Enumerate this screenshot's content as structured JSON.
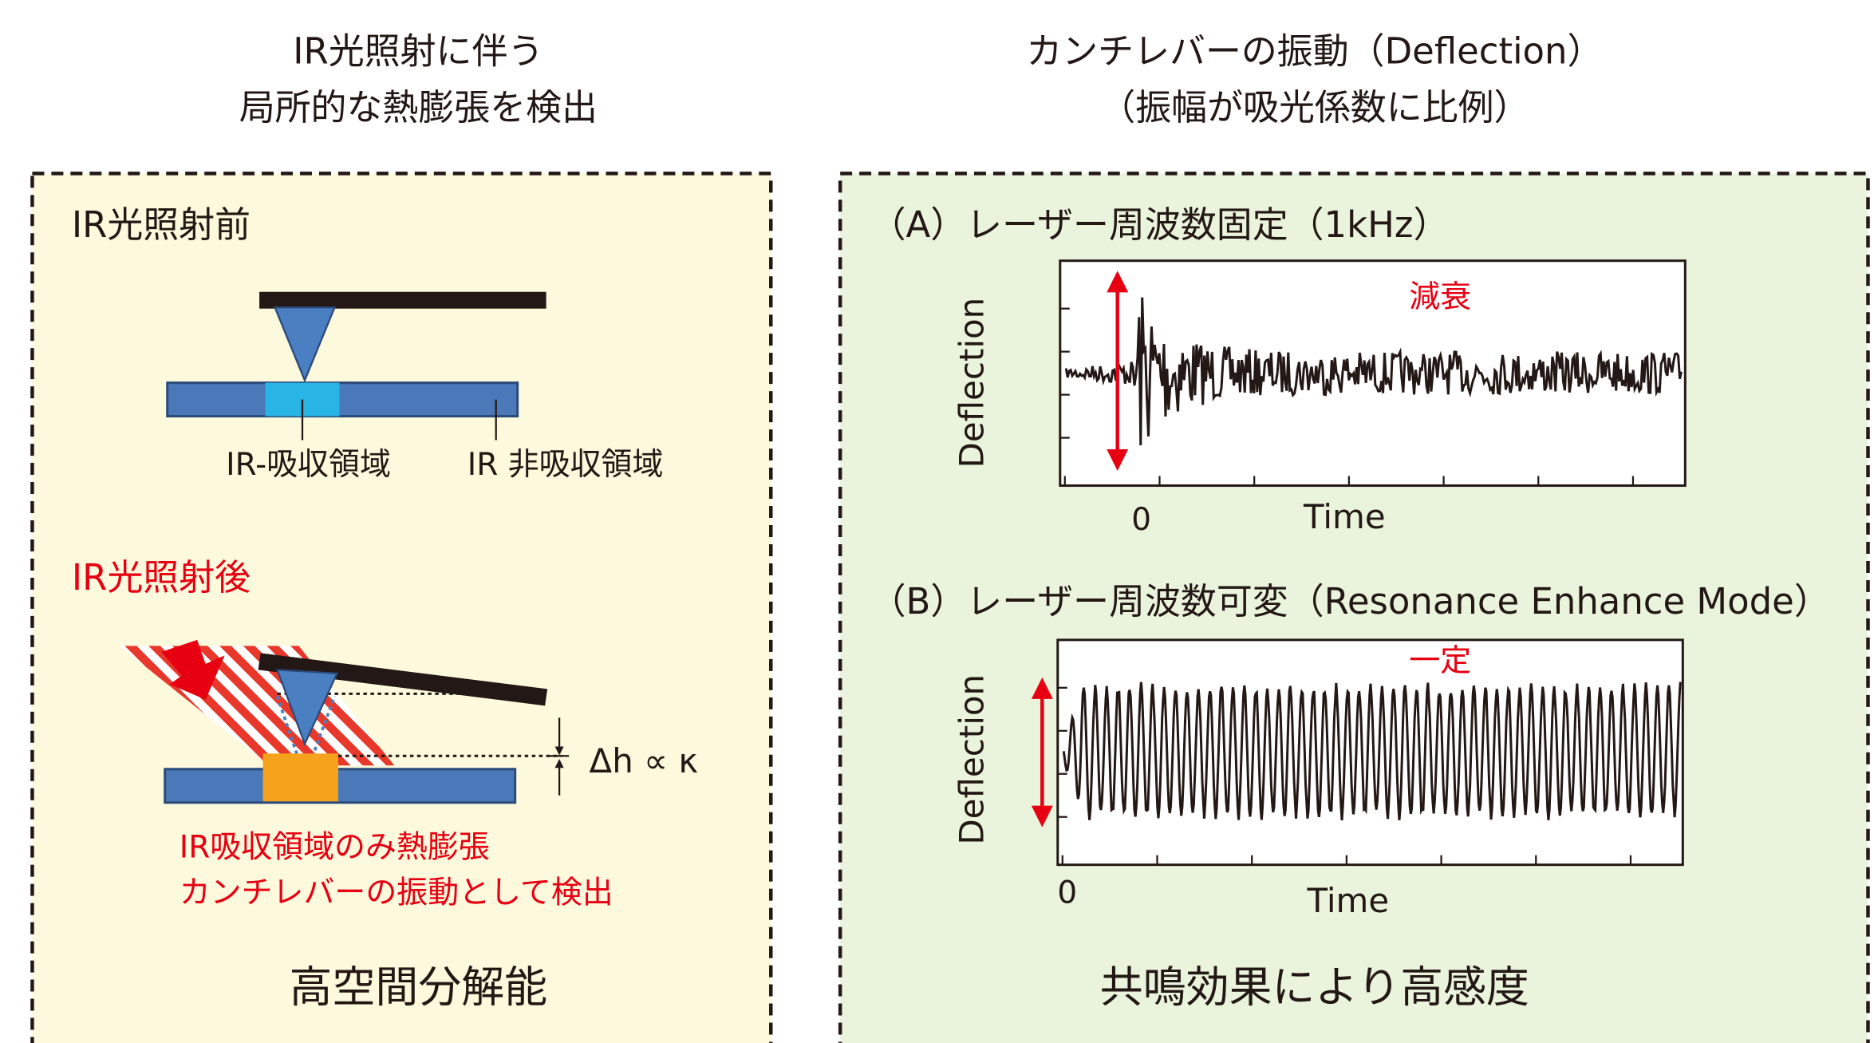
{
  "left": {
    "heading": [
      "IR光照射に伴う",
      "局所的な熱膨張を検出"
    ],
    "before_title": "IR光照射前",
    "label_absorb": "IR-吸収領域",
    "label_nonabsorb": "IR 非吸収領域",
    "after_title": "IR光照射後",
    "delta": "Δh ∝ κ",
    "notes": [
      "IR吸収領域のみ熱膨張",
      "カンチレバーの振動として検出"
    ],
    "footer": "高空間分解能"
  },
  "right": {
    "heading": [
      "カンチレバーの振動（Deflection）",
      "（振幅が吸光係数に比例）"
    ],
    "panel_a": {
      "title": "（A）レーザー周波数固定（1kHz）",
      "ylabel": "Deflection",
      "xlabel": "Time",
      "zero": "0",
      "annotation": "減衰"
    },
    "panel_b": {
      "title": "（B）レーザー周波数可変（Resonance Enhance Mode）",
      "ylabel": "Deflection",
      "xlabel": "Time",
      "zero": "0",
      "annotation": "一定"
    },
    "footer": "共鳴効果により高感度"
  }
}
